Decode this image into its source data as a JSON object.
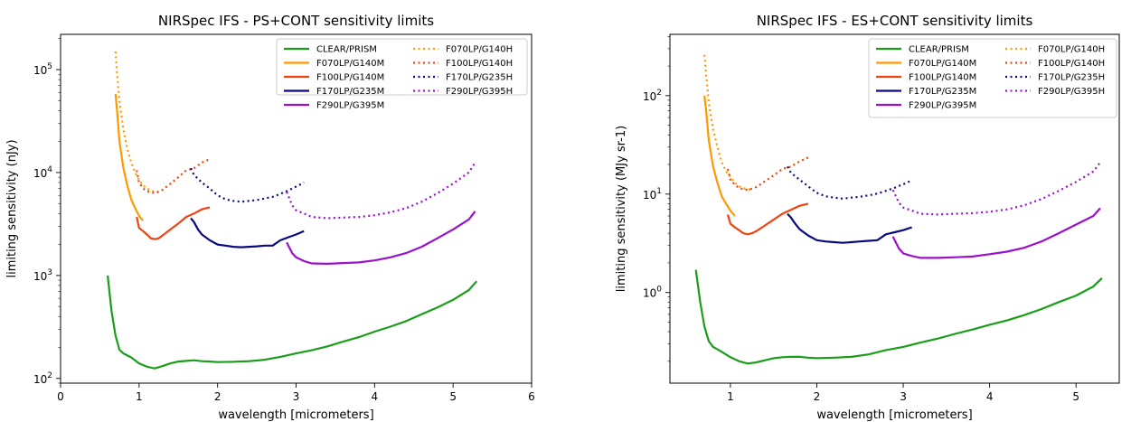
{
  "chart_data": [
    {
      "type": "line",
      "title": "NIRSpec IFS - PS+CONT sensitivity limits",
      "xlabel": "wavelength [micrometers]",
      "ylabel": "limiting sensitivity (nJy)",
      "yscale": "log",
      "xlim": [
        0,
        6
      ],
      "ylim": [
        90,
        220000
      ],
      "x_ticks": [
        0,
        1,
        2,
        3,
        4,
        5,
        6
      ],
      "x_tick_labels": [
        "0",
        "1",
        "2",
        "3",
        "4",
        "5",
        "6"
      ],
      "y_ticks": [
        100,
        1000,
        10000,
        100000
      ],
      "y_tick_labels": [
        "10",
        "10",
        "10",
        "10"
      ],
      "y_tick_exps": [
        "2",
        "3",
        "4",
        "5"
      ],
      "grid": false,
      "legend_position": "top-right",
      "series": [
        {
          "name": "CLEAR/PRISM",
          "color": "#1a9e1a",
          "style": "solid",
          "x": [
            0.6,
            0.65,
            0.7,
            0.75,
            0.8,
            0.9,
            1.0,
            1.1,
            1.2,
            1.3,
            1.4,
            1.5,
            1.6,
            1.7,
            1.8,
            1.9,
            2.0,
            2.2,
            2.4,
            2.6,
            2.8,
            3.0,
            3.2,
            3.4,
            3.6,
            3.8,
            4.0,
            4.2,
            4.4,
            4.6,
            4.8,
            5.0,
            5.2,
            5.3
          ],
          "y": [
            1000,
            450,
            260,
            190,
            175,
            160,
            140,
            130,
            125,
            132,
            140,
            146,
            148,
            150,
            147,
            146,
            144,
            145,
            147,
            152,
            162,
            175,
            188,
            205,
            228,
            252,
            285,
            318,
            360,
            420,
            490,
            580,
            720,
            880
          ]
        },
        {
          "name": "F070LP/G140M",
          "color": "#ff9900",
          "style": "solid",
          "x": [
            0.7,
            0.72,
            0.75,
            0.8,
            0.85,
            0.9,
            0.95,
            1.0,
            1.05
          ],
          "y": [
            58000,
            40000,
            20000,
            11000,
            7500,
            5500,
            4500,
            3800,
            3400
          ]
        },
        {
          "name": "F100LP/G140M",
          "color": "#ee4411",
          "style": "solid",
          "x": [
            0.97,
            1.0,
            1.05,
            1.1,
            1.15,
            1.2,
            1.25,
            1.3,
            1.4,
            1.5,
            1.6,
            1.7,
            1.8,
            1.9
          ],
          "y": [
            3700,
            2900,
            2700,
            2500,
            2300,
            2250,
            2300,
            2450,
            2800,
            3200,
            3700,
            4000,
            4400,
            4600
          ]
        },
        {
          "name": "F170LP/G235M",
          "color": "#0a0a80",
          "style": "solid",
          "x": [
            1.66,
            1.7,
            1.75,
            1.8,
            1.9,
            2.0,
            2.1,
            2.2,
            2.3,
            2.4,
            2.5,
            2.6,
            2.7,
            2.8,
            2.9,
            3.0,
            3.1
          ],
          "y": [
            3600,
            3300,
            2800,
            2500,
            2200,
            2000,
            1950,
            1900,
            1880,
            1900,
            1920,
            1950,
            1950,
            2200,
            2350,
            2500,
            2700
          ]
        },
        {
          "name": "F290LP/G395M",
          "color": "#9911cc",
          "style": "solid",
          "x": [
            2.88,
            2.95,
            3.0,
            3.1,
            3.2,
            3.4,
            3.6,
            3.8,
            4.0,
            4.2,
            4.4,
            4.6,
            4.8,
            5.0,
            5.2,
            5.28
          ],
          "y": [
            2100,
            1650,
            1500,
            1380,
            1310,
            1300,
            1320,
            1340,
            1400,
            1500,
            1650,
            1900,
            2300,
            2800,
            3500,
            4200
          ]
        },
        {
          "name": "F070LP/G140H",
          "color": "#ff9900",
          "style": "dotted",
          "x": [
            0.7,
            0.72,
            0.75,
            0.8,
            0.85,
            0.9,
            0.95,
            1.0,
            1.05,
            1.1,
            1.15,
            1.2,
            1.25
          ],
          "y": [
            150000,
            90000,
            50000,
            26000,
            17000,
            12500,
            10000,
            8500,
            7500,
            7000,
            6700,
            6500,
            6400
          ]
        },
        {
          "name": "F100LP/G140H",
          "color": "#ee4411",
          "style": "dotted",
          "x": [
            0.97,
            1.0,
            1.05,
            1.1,
            1.2,
            1.3,
            1.4,
            1.5,
            1.6,
            1.7,
            1.8,
            1.9
          ],
          "y": [
            10500,
            8000,
            7000,
            6600,
            6300,
            6800,
            7800,
            9000,
            10500,
            11000,
            12500,
            13500
          ]
        },
        {
          "name": "F170LP/G235H",
          "color": "#0a0a80",
          "style": "dotted",
          "x": [
            1.66,
            1.7,
            1.8,
            1.9,
            2.0,
            2.1,
            2.2,
            2.3,
            2.4,
            2.5,
            2.6,
            2.7,
            2.8,
            2.9,
            3.0,
            3.1
          ],
          "y": [
            11000,
            9500,
            8000,
            7000,
            6000,
            5500,
            5300,
            5200,
            5300,
            5400,
            5600,
            5800,
            6200,
            6700,
            7300,
            8000
          ]
        },
        {
          "name": "F290LP/G395H",
          "color": "#9911cc",
          "style": "dotted",
          "x": [
            2.88,
            2.95,
            3.0,
            3.1,
            3.2,
            3.4,
            3.6,
            3.8,
            4.0,
            4.2,
            4.4,
            4.6,
            4.8,
            5.0,
            5.2,
            5.28
          ],
          "y": [
            6500,
            4800,
            4300,
            4000,
            3700,
            3600,
            3650,
            3700,
            3850,
            4100,
            4500,
            5200,
            6300,
            7800,
            10000,
            12500
          ]
        }
      ]
    },
    {
      "type": "line",
      "title": "NIRSpec IFS - ES+CONT sensitivity limits",
      "xlabel": "wavelength [micrometers]",
      "ylabel": "limiting sensitivity (MJy sr-1)",
      "yscale": "log",
      "xlim": [
        0.3,
        5.5
      ],
      "ylim": [
        0.12,
        420
      ],
      "x_ticks": [
        1,
        2,
        3,
        4,
        5
      ],
      "x_tick_labels": [
        "1",
        "2",
        "3",
        "4",
        "5"
      ],
      "y_ticks": [
        1,
        10,
        100
      ],
      "y_tick_labels": [
        "10",
        "10",
        "10"
      ],
      "y_tick_exps": [
        "0",
        "1",
        "2"
      ],
      "grid": false,
      "legend_position": "top-right",
      "series": [
        {
          "name": "CLEAR/PRISM",
          "color": "#1a9e1a",
          "style": "solid",
          "x": [
            0.6,
            0.65,
            0.7,
            0.75,
            0.8,
            0.9,
            1.0,
            1.1,
            1.2,
            1.3,
            1.4,
            1.5,
            1.6,
            1.7,
            1.8,
            1.9,
            2.0,
            2.2,
            2.4,
            2.6,
            2.8,
            3.0,
            3.2,
            3.4,
            3.6,
            3.8,
            4.0,
            4.2,
            4.4,
            4.6,
            4.8,
            5.0,
            5.2,
            5.3
          ],
          "y": [
            1.7,
            0.8,
            0.45,
            0.32,
            0.28,
            0.25,
            0.22,
            0.2,
            0.19,
            0.195,
            0.205,
            0.215,
            0.22,
            0.222,
            0.222,
            0.218,
            0.215,
            0.218,
            0.222,
            0.235,
            0.26,
            0.28,
            0.31,
            0.34,
            0.38,
            0.42,
            0.47,
            0.52,
            0.59,
            0.68,
            0.8,
            0.93,
            1.15,
            1.4
          ]
        },
        {
          "name": "F070LP/G140M",
          "color": "#ff9900",
          "style": "solid",
          "x": [
            0.7,
            0.72,
            0.75,
            0.8,
            0.85,
            0.9,
            0.95,
            1.0,
            1.05
          ],
          "y": [
            100,
            70,
            35,
            19,
            13,
            9.5,
            8,
            6.8,
            6
          ]
        },
        {
          "name": "F100LP/G140M",
          "color": "#ee4411",
          "style": "solid",
          "x": [
            0.97,
            1.0,
            1.05,
            1.1,
            1.15,
            1.2,
            1.25,
            1.3,
            1.4,
            1.5,
            1.6,
            1.7,
            1.8,
            1.9
          ],
          "y": [
            6.2,
            5.0,
            4.6,
            4.3,
            4.0,
            3.9,
            4.0,
            4.2,
            4.8,
            5.5,
            6.3,
            6.9,
            7.6,
            8.0
          ]
        },
        {
          "name": "F170LP/G235M",
          "color": "#0a0a80",
          "style": "solid",
          "x": [
            1.66,
            1.7,
            1.75,
            1.8,
            1.9,
            2.0,
            2.1,
            2.2,
            2.3,
            2.4,
            2.5,
            2.6,
            2.7,
            2.8,
            2.9,
            3.0,
            3.1
          ],
          "y": [
            6.3,
            5.8,
            5.0,
            4.4,
            3.8,
            3.4,
            3.3,
            3.25,
            3.2,
            3.25,
            3.3,
            3.35,
            3.4,
            3.9,
            4.1,
            4.3,
            4.6
          ]
        },
        {
          "name": "F290LP/G395M",
          "color": "#9911cc",
          "style": "solid",
          "x": [
            2.88,
            2.95,
            3.0,
            3.1,
            3.2,
            3.4,
            3.6,
            3.8,
            4.0,
            4.2,
            4.4,
            4.6,
            4.8,
            5.0,
            5.2,
            5.28
          ],
          "y": [
            3.7,
            2.8,
            2.5,
            2.35,
            2.25,
            2.25,
            2.28,
            2.32,
            2.45,
            2.6,
            2.85,
            3.3,
            4.0,
            4.9,
            6.0,
            7.2
          ]
        },
        {
          "name": "F070LP/G140H",
          "color": "#ff9900",
          "style": "dotted",
          "x": [
            0.7,
            0.72,
            0.75,
            0.8,
            0.85,
            0.9,
            0.95,
            1.0,
            1.05,
            1.1,
            1.15,
            1.2,
            1.25
          ],
          "y": [
            260,
            160,
            85,
            45,
            30,
            21,
            17,
            15,
            13,
            12,
            11.5,
            11.2,
            11
          ]
        },
        {
          "name": "F100LP/G140H",
          "color": "#ee4411",
          "style": "dotted",
          "x": [
            0.97,
            1.0,
            1.05,
            1.1,
            1.2,
            1.3,
            1.4,
            1.5,
            1.6,
            1.7,
            1.8,
            1.9
          ],
          "y": [
            18,
            14,
            12.5,
            11.5,
            11,
            11.8,
            13.5,
            15.5,
            18,
            19,
            21.5,
            23.5
          ]
        },
        {
          "name": "F170LP/G235H",
          "color": "#0a0a80",
          "style": "dotted",
          "x": [
            1.66,
            1.7,
            1.8,
            1.9,
            2.0,
            2.1,
            2.2,
            2.3,
            2.4,
            2.5,
            2.6,
            2.7,
            2.8,
            2.9,
            3.0,
            3.1
          ],
          "y": [
            19,
            16.5,
            14,
            12,
            10.3,
            9.5,
            9.2,
            9.0,
            9.2,
            9.4,
            9.7,
            10.1,
            10.8,
            11.6,
            12.6,
            13.8
          ]
        },
        {
          "name": "F290LP/G395H",
          "color": "#9911cc",
          "style": "dotted",
          "x": [
            2.88,
            2.95,
            3.0,
            3.1,
            3.2,
            3.4,
            3.6,
            3.8,
            4.0,
            4.2,
            4.4,
            4.6,
            4.8,
            5.0,
            5.2,
            5.28
          ],
          "y": [
            11,
            8.2,
            7.3,
            6.8,
            6.3,
            6.2,
            6.3,
            6.4,
            6.6,
            7.0,
            7.7,
            8.9,
            10.8,
            13.3,
            17.0,
            21.0
          ]
        }
      ]
    }
  ]
}
